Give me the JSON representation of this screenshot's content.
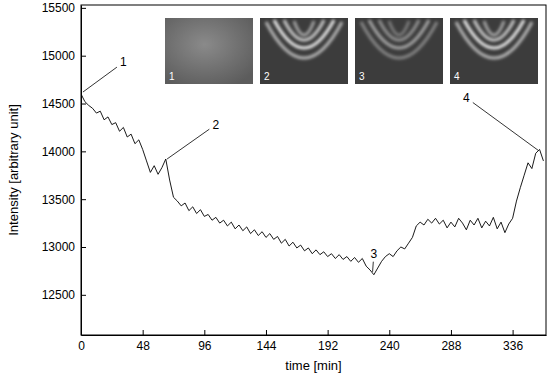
{
  "chart_data": {
    "type": "line",
    "x_label": "time [min]",
    "y_label": "Intensity [arbitrary unit]",
    "color": "#000000",
    "xlim": [
      0,
      362
    ],
    "ylim": [
      12080,
      15530
    ],
    "xticks": [
      0,
      48,
      96,
      144,
      192,
      240,
      288,
      336
    ],
    "yticks": [
      12500,
      13000,
      13500,
      14000,
      14500,
      15000,
      15500
    ],
    "x": [
      0,
      3,
      6,
      9,
      12,
      15,
      18,
      21,
      24,
      27,
      30,
      33,
      36,
      39,
      42,
      45,
      48,
      51,
      54,
      57,
      60,
      63,
      66,
      69,
      72,
      75,
      78,
      81,
      84,
      87,
      90,
      93,
      96,
      99,
      102,
      105,
      108,
      111,
      114,
      117,
      120,
      123,
      126,
      129,
      132,
      135,
      138,
      141,
      144,
      147,
      150,
      153,
      156,
      159,
      162,
      165,
      168,
      171,
      174,
      177,
      180,
      183,
      186,
      189,
      192,
      195,
      198,
      201,
      204,
      207,
      210,
      213,
      216,
      219,
      222,
      225,
      228,
      231,
      234,
      237,
      240,
      243,
      246,
      249,
      252,
      255,
      258,
      261,
      264,
      267,
      270,
      273,
      276,
      279,
      282,
      285,
      288,
      291,
      294,
      297,
      300,
      303,
      306,
      309,
      312,
      315,
      318,
      321,
      324,
      327,
      330,
      333,
      336,
      339,
      342,
      345,
      348,
      351,
      354,
      357,
      360
    ],
    "values": [
      14600,
      14520,
      14480,
      14450,
      14400,
      14420,
      14330,
      14360,
      14280,
      14300,
      14210,
      14250,
      14150,
      14180,
      14080,
      14120,
      14020,
      13900,
      13780,
      13850,
      13760,
      13830,
      13920,
      13700,
      13520,
      13480,
      13430,
      13460,
      13380,
      13420,
      13350,
      13390,
      13320,
      13340,
      13280,
      13310,
      13250,
      13280,
      13220,
      13260,
      13190,
      13230,
      13170,
      13210,
      13140,
      13180,
      13120,
      13160,
      13100,
      13140,
      13080,
      13110,
      13040,
      13080,
      13010,
      13050,
      12990,
      13020,
      12960,
      12990,
      12930,
      12970,
      12920,
      12950,
      12900,
      12930,
      12880,
      12920,
      12870,
      12900,
      12850,
      12890,
      12840,
      12880,
      12800,
      12760,
      12710,
      12780,
      12850,
      12900,
      12930,
      12900,
      12960,
      13000,
      12980,
      13040,
      13100,
      13220,
      13260,
      13230,
      13290,
      13250,
      13300,
      13240,
      13280,
      13200,
      13260,
      13210,
      13300,
      13250,
      13180,
      13280,
      13230,
      13300,
      13200,
      13270,
      13220,
      13310,
      13190,
      13260,
      13150,
      13240,
      13300,
      13480,
      13620,
      13750,
      13880,
      13820,
      13980,
      14020,
      13900
    ],
    "annotations": [
      {
        "text": "1",
        "x": 1.5,
        "y": 14620,
        "text_x": 33,
        "text_y": 14930
      },
      {
        "text": "2",
        "x": 67,
        "y": 13920,
        "text_x": 105,
        "text_y": 14280
      },
      {
        "text": "3",
        "x": 227,
        "y": 12740,
        "text_x": 228,
        "text_y": 12930
      },
      {
        "text": "4",
        "x": 356,
        "y": 14010,
        "text_x": 300,
        "text_y": 14560
      }
    ],
    "insets": [
      {
        "label": "1"
      },
      {
        "label": "2"
      },
      {
        "label": "3"
      },
      {
        "label": "4"
      }
    ]
  }
}
